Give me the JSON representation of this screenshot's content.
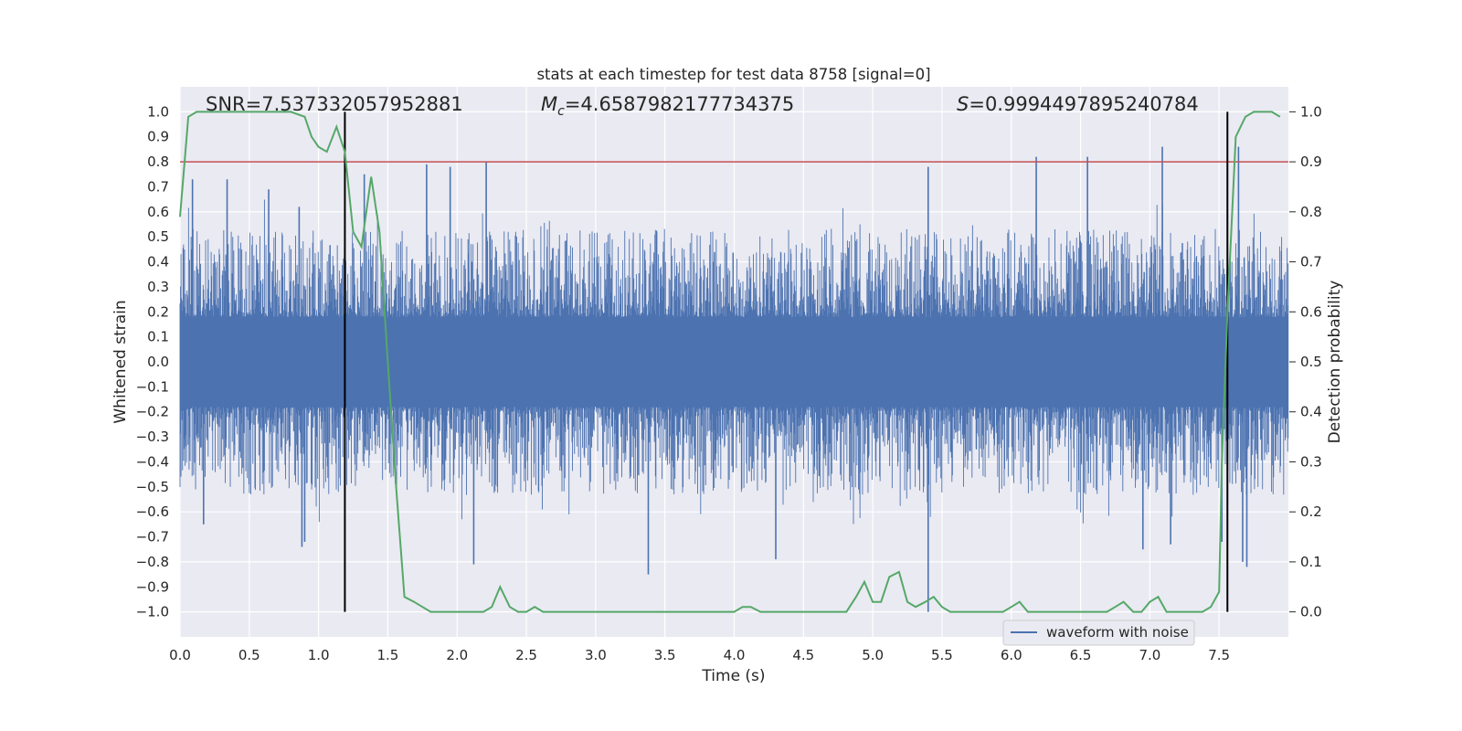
{
  "chart_data": {
    "type": "line",
    "title": "stats at each timestep for test data 8758 [signal=0]",
    "xlabel": "Time (s)",
    "ylabel": "Whitened strain",
    "y2label": "Detection probability",
    "xlim": [
      0.0,
      8.0
    ],
    "ylim": [
      -1.1,
      1.1
    ],
    "y2lim": [
      -0.05,
      1.05
    ],
    "xticks": [
      "0.0",
      "0.5",
      "1.0",
      "1.5",
      "2.0",
      "2.5",
      "3.0",
      "3.5",
      "4.0",
      "4.5",
      "5.0",
      "5.5",
      "6.0",
      "6.5",
      "7.0",
      "7.5"
    ],
    "yticks": [
      "−1.0",
      "−0.9",
      "−0.8",
      "−0.7",
      "−0.6",
      "−0.5",
      "−0.4",
      "−0.3",
      "−0.2",
      "−0.1",
      "0.0",
      "0.1",
      "0.2",
      "0.3",
      "0.4",
      "0.5",
      "0.6",
      "0.7",
      "0.8",
      "0.9",
      "1.0"
    ],
    "y2ticks": [
      "0.0",
      "0.1",
      "0.2",
      "0.3",
      "0.4",
      "0.5",
      "0.6",
      "0.7",
      "0.8",
      "0.9",
      "1.0"
    ],
    "annotations": {
      "snr_prefix": "SNR=",
      "snr": "7.537332057952881",
      "mc_symbol": "M",
      "mc_sub": "c",
      "mc_value": "=4.6587982177734375",
      "s_symbol": "S",
      "s_value": "=0.9994497895240784"
    },
    "threshold": {
      "axis": "right",
      "value": 0.9,
      "color": "#c44e52"
    },
    "vlines": [
      1.19,
      7.56
    ],
    "legend": {
      "location": "lower-right",
      "entries": [
        "waveform with noise"
      ]
    },
    "series": [
      {
        "name": "waveform with noise",
        "axis": "left",
        "color": "#4c72b0",
        "envelope": {
          "core": 0.18,
          "typical_peak": 0.5,
          "max_peak": 0.82
        },
        "spikes": [
          {
            "x": 0.09,
            "y": 0.73
          },
          {
            "x": 0.34,
            "y": 0.73
          },
          {
            "x": 0.64,
            "y": 0.69
          },
          {
            "x": 0.86,
            "y": 0.62
          },
          {
            "x": 0.88,
            "y": -0.74
          },
          {
            "x": 0.17,
            "y": -0.65
          },
          {
            "x": 0.9,
            "y": -0.72
          },
          {
            "x": 1.33,
            "y": 0.75
          },
          {
            "x": 1.78,
            "y": 0.79
          },
          {
            "x": 1.95,
            "y": 0.78
          },
          {
            "x": 2.21,
            "y": 0.8
          },
          {
            "x": 2.12,
            "y": -0.81
          },
          {
            "x": 3.38,
            "y": -0.85
          },
          {
            "x": 4.3,
            "y": -0.79
          },
          {
            "x": 5.4,
            "y": -1.0
          },
          {
            "x": 5.4,
            "y": 0.78
          },
          {
            "x": 6.18,
            "y": 0.82
          },
          {
            "x": 6.55,
            "y": 0.82
          },
          {
            "x": 6.95,
            "y": -0.75
          },
          {
            "x": 7.09,
            "y": 0.86
          },
          {
            "x": 7.15,
            "y": -0.73
          },
          {
            "x": 7.64,
            "y": 0.86
          },
          {
            "x": 7.7,
            "y": -0.82
          },
          {
            "x": 7.67,
            "y": -0.8
          },
          {
            "x": 7.52,
            "y": -0.72
          }
        ]
      },
      {
        "name": "detection probability",
        "axis": "right",
        "color": "#55a868",
        "x": [
          0.0,
          0.06,
          0.12,
          0.2,
          0.5,
          0.8,
          0.9,
          0.95,
          1.0,
          1.06,
          1.13,
          1.19,
          1.25,
          1.31,
          1.38,
          1.44,
          1.5,
          1.56,
          1.62,
          1.69,
          1.75,
          1.81,
          1.88,
          1.94,
          2.0,
          2.06,
          2.12,
          2.19,
          2.25,
          2.31,
          2.38,
          2.44,
          2.5,
          2.56,
          2.62,
          2.69,
          2.75,
          2.81,
          2.88,
          3.0,
          3.2,
          3.5,
          3.8,
          4.0,
          4.06,
          4.12,
          4.19,
          4.25,
          4.4,
          4.6,
          4.75,
          4.81,
          4.88,
          4.94,
          5.0,
          5.06,
          5.12,
          5.19,
          5.25,
          5.31,
          5.38,
          5.44,
          5.5,
          5.56,
          5.62,
          5.69,
          5.75,
          5.81,
          5.88,
          5.94,
          6.0,
          6.06,
          6.12,
          6.19,
          6.25,
          6.31,
          6.38,
          6.44,
          6.5,
          6.56,
          6.62,
          6.69,
          6.75,
          6.81,
          6.88,
          6.94,
          7.0,
          7.06,
          7.12,
          7.19,
          7.25,
          7.31,
          7.38,
          7.44,
          7.5,
          7.52,
          7.56,
          7.62,
          7.69,
          7.75,
          7.81,
          7.88,
          7.94
        ],
        "values": [
          0.79,
          0.99,
          1.0,
          1.0,
          1.0,
          1.0,
          0.99,
          0.95,
          0.93,
          0.92,
          0.97,
          0.92,
          0.76,
          0.73,
          0.87,
          0.76,
          0.5,
          0.25,
          0.03,
          0.02,
          0.01,
          0.0,
          0.0,
          0.0,
          0.0,
          0.0,
          0.0,
          0.0,
          0.01,
          0.05,
          0.01,
          0.0,
          0.0,
          0.01,
          0.0,
          0.0,
          0.0,
          0.0,
          0.0,
          0.0,
          0.0,
          0.0,
          0.0,
          0.0,
          0.01,
          0.01,
          0.0,
          0.0,
          0.0,
          0.0,
          0.0,
          0.0,
          0.03,
          0.06,
          0.02,
          0.02,
          0.07,
          0.08,
          0.02,
          0.01,
          0.02,
          0.03,
          0.01,
          0.0,
          0.0,
          0.0,
          0.0,
          0.0,
          0.0,
          0.0,
          0.01,
          0.02,
          0.0,
          0.0,
          0.0,
          0.0,
          0.0,
          0.0,
          0.0,
          0.0,
          0.0,
          0.0,
          0.01,
          0.02,
          0.0,
          0.0,
          0.02,
          0.03,
          0.0,
          0.0,
          0.0,
          0.0,
          0.0,
          0.01,
          0.04,
          0.3,
          0.6,
          0.95,
          0.99,
          1.0,
          1.0,
          1.0,
          0.99
        ]
      }
    ]
  }
}
